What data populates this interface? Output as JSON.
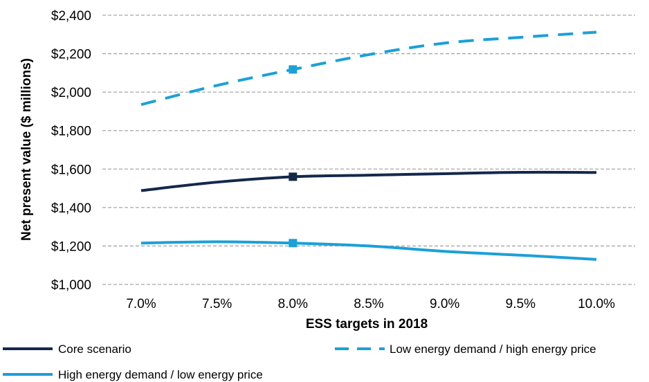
{
  "chart_data": {
    "type": "line",
    "title": "",
    "xlabel": "ESS targets in 2018",
    "ylabel": "Net present value ($ millions)",
    "categories": [
      "7.0%",
      "7.5%",
      "8.0%",
      "8.5%",
      "9.0%",
      "9.5%",
      "10.0%"
    ],
    "y_ticks": [
      "$1,000",
      "$1,200",
      "$1,400",
      "$1,600",
      "$1,800",
      "$2,000",
      "$2,200",
      "$2,400"
    ],
    "ylim": [
      1000,
      2400
    ],
    "grid": "horizontal dashed",
    "legend_position": "bottom",
    "marker_category": "8.0%",
    "series": [
      {
        "name": "Core scenario",
        "color": "#14284b",
        "style": "solid",
        "values": [
          1488,
          1532,
          1560,
          1568,
          1576,
          1583,
          1582
        ]
      },
      {
        "name": "Low energy demand / high energy price",
        "color": "#1ba0d8",
        "style": "dashed",
        "values": [
          1935,
          2035,
          2118,
          2195,
          2255,
          2285,
          2312
        ]
      },
      {
        "name": "High energy demand / low energy price",
        "color": "#1ba0d8",
        "style": "solid",
        "values": [
          1215,
          1222,
          1215,
          1200,
          1172,
          1152,
          1130
        ]
      }
    ]
  }
}
